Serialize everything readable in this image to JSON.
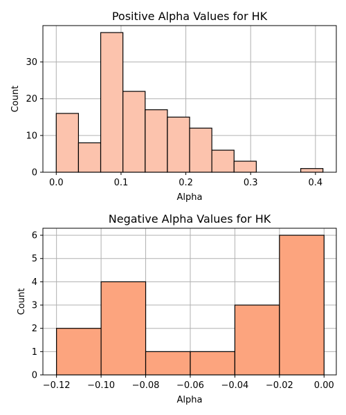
{
  "chart_data": [
    {
      "type": "bar",
      "title": "Positive Alpha Values for HK",
      "xlabel": "Alpha",
      "ylabel": "Count",
      "bin_edges": [
        0.0,
        0.0343,
        0.0686,
        0.1029,
        0.1372,
        0.1715,
        0.2058,
        0.2401,
        0.2744,
        0.3087,
        0.343,
        0.3773,
        0.4116
      ],
      "values": [
        16,
        8,
        38,
        22,
        17,
        15,
        12,
        6,
        3,
        0,
        0,
        1
      ],
      "xlim": [
        -0.0206,
        0.4322
      ],
      "ylim": [
        0,
        39.9
      ],
      "xticks": [
        0.0,
        0.1,
        0.2,
        0.3,
        0.4
      ],
      "xtick_labels": [
        "0.0",
        "0.1",
        "0.2",
        "0.3",
        "0.4"
      ],
      "yticks": [
        0,
        10,
        20,
        30
      ],
      "ytick_labels": [
        "0",
        "10",
        "20",
        "30"
      ],
      "grid": true,
      "bar_color": "#fcc3ad"
    },
    {
      "type": "bar",
      "title": "Negative Alpha Values for HK",
      "xlabel": "Alpha",
      "ylabel": "Count",
      "bin_edges": [
        -0.12,
        -0.1,
        -0.08,
        -0.06,
        -0.04,
        -0.02,
        0.0
      ],
      "values": [
        2,
        4,
        1,
        1,
        3,
        6
      ],
      "xlim": [
        -0.1261,
        0.0055
      ],
      "ylim": [
        0,
        6.3
      ],
      "xticks": [
        -0.12,
        -0.1,
        -0.08,
        -0.06,
        -0.04,
        -0.02,
        0.0
      ],
      "xtick_labels": [
        "−0.12",
        "−0.10",
        "−0.08",
        "−0.06",
        "−0.04",
        "−0.02",
        "0.00"
      ],
      "yticks": [
        0,
        1,
        2,
        3,
        4,
        5,
        6
      ],
      "ytick_labels": [
        "0",
        "1",
        "2",
        "3",
        "4",
        "5",
        "6"
      ],
      "grid": true,
      "bar_color": "#fca47e"
    }
  ]
}
